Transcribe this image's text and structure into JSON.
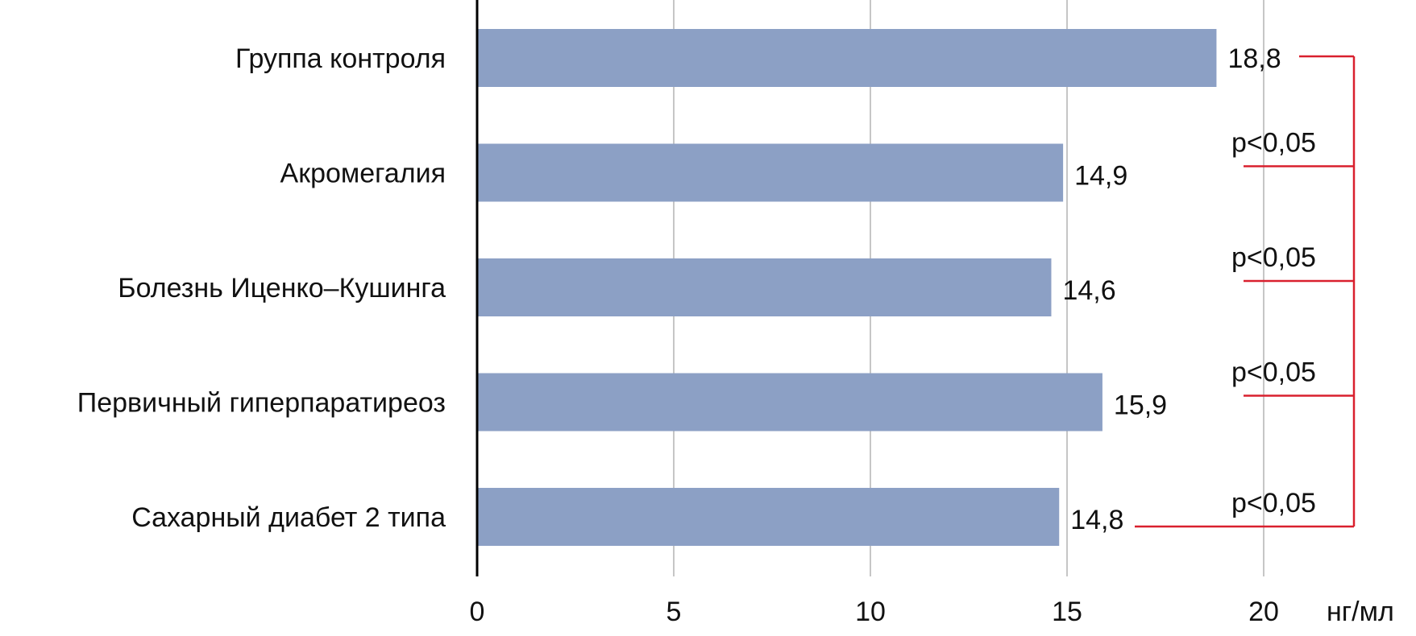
{
  "chart_data": {
    "type": "bar",
    "orientation": "horizontal",
    "title": "",
    "xlabel": "нг/мл",
    "ylabel": "",
    "categories": [
      "Группа контроля",
      "Акромегалия",
      "Болезнь Иценко–Кушинга",
      "Первичный гиперпаратиреоз",
      "Сахарный диабет 2 типа"
    ],
    "values": [
      18.8,
      14.9,
      14.6,
      15.9,
      14.8
    ],
    "value_labels": [
      "18,8",
      "14,9",
      "14,6",
      "15,9",
      "14,8"
    ],
    "xlim": [
      0,
      20
    ],
    "xticks": [
      0,
      5,
      10,
      15,
      20
    ],
    "xtick_labels": [
      "0",
      "5",
      "10",
      "15",
      "20"
    ],
    "grid": true,
    "legend": "none",
    "bar_color": "#8ca0c5",
    "annotation_color": "#d9202e",
    "significance": {
      "reference_category": "Группа контроля",
      "comparisons": [
        {
          "category": "Акромегалия",
          "label": "p<0,05"
        },
        {
          "category": "Болезнь Иценко–Кушинга",
          "label": "p<0,05"
        },
        {
          "category": "Первичный гиперпаратиреоз",
          "label": "p<0,05"
        },
        {
          "category": "Сахарный диабет 2 типа",
          "label": "p<0,05"
        }
      ]
    }
  }
}
